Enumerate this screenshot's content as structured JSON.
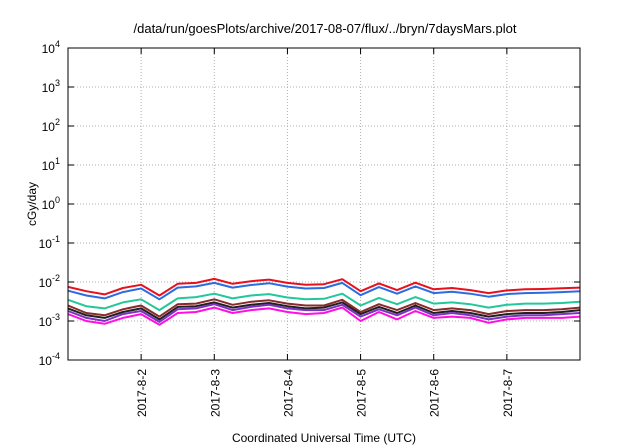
{
  "chart_data": {
    "type": "line",
    "title": "/data/run/goesPlots/archive/2017-08-07/flux/../bryn/7daysMars.plot",
    "xlabel": "Coordinated Universal Time (UTC)",
    "ylabel": "cGy/day",
    "y_scale": "log",
    "ylim": [
      0.0001,
      10000
    ],
    "xlim": [
      0,
      7
    ],
    "x_unit": "days since 2017-08-01 00:00 UTC",
    "grid": true,
    "legend": "none",
    "y_ticks": [
      {
        "value": 0.0001,
        "base": "10",
        "exp": "-4"
      },
      {
        "value": 0.001,
        "base": "10",
        "exp": "-3"
      },
      {
        "value": 0.01,
        "base": "10",
        "exp": "-2"
      },
      {
        "value": 0.1,
        "base": "10",
        "exp": "-1"
      },
      {
        "value": 1,
        "base": "10",
        "exp": "0"
      },
      {
        "value": 10,
        "base": "10",
        "exp": "1"
      },
      {
        "value": 100,
        "base": "10",
        "exp": "2"
      },
      {
        "value": 1000,
        "base": "10",
        "exp": "3"
      },
      {
        "value": 10000,
        "base": "10",
        "exp": "4"
      }
    ],
    "x_ticks": [
      {
        "value": 1,
        "label": "2017-8-2"
      },
      {
        "value": 2,
        "label": "2017-8-3"
      },
      {
        "value": 3,
        "label": "2017-8-4"
      },
      {
        "value": 4,
        "label": "2017-8-5"
      },
      {
        "value": 5,
        "label": "2017-8-6"
      },
      {
        "value": 6,
        "label": "2017-8-7"
      }
    ],
    "x": [
      0.0,
      0.25,
      0.5,
      0.75,
      1.0,
      1.25,
      1.5,
      1.75,
      2.0,
      2.25,
      2.5,
      2.75,
      3.0,
      3.25,
      3.5,
      3.75,
      4.0,
      4.25,
      4.5,
      4.75,
      5.0,
      5.25,
      5.5,
      5.75,
      6.0,
      6.25,
      6.5,
      6.75,
      7.0
    ],
    "series": [
      {
        "color": "#e8101c",
        "values": [
          0.0075,
          0.0058,
          0.0048,
          0.007,
          0.0085,
          0.0045,
          0.009,
          0.0095,
          0.012,
          0.009,
          0.0105,
          0.0115,
          0.0095,
          0.0085,
          0.0088,
          0.0118,
          0.0058,
          0.0092,
          0.0062,
          0.0096,
          0.0065,
          0.007,
          0.0062,
          0.0052,
          0.0061,
          0.0065,
          0.0066,
          0.0069,
          0.0072
        ]
      },
      {
        "color": "#2b6ce0",
        "values": [
          0.006,
          0.0045,
          0.0038,
          0.0055,
          0.0068,
          0.0036,
          0.0072,
          0.0077,
          0.0095,
          0.0072,
          0.0084,
          0.0093,
          0.0076,
          0.0068,
          0.007,
          0.0095,
          0.0046,
          0.0074,
          0.005,
          0.0077,
          0.0052,
          0.0056,
          0.005,
          0.0042,
          0.0049,
          0.0052,
          0.0053,
          0.0055,
          0.0058
        ]
      },
      {
        "color": "#22c79a",
        "values": [
          0.0035,
          0.0024,
          0.0021,
          0.003,
          0.0036,
          0.0019,
          0.0038,
          0.0041,
          0.005,
          0.0038,
          0.0045,
          0.0049,
          0.004,
          0.0036,
          0.0037,
          0.005,
          0.0025,
          0.0039,
          0.0027,
          0.0041,
          0.0028,
          0.003,
          0.0027,
          0.0022,
          0.0026,
          0.0028,
          0.0028,
          0.0029,
          0.0031
        ]
      },
      {
        "color": "#8a2a2a",
        "values": [
          0.0025,
          0.0016,
          0.0014,
          0.002,
          0.0025,
          0.0013,
          0.0027,
          0.0028,
          0.0036,
          0.0026,
          0.0031,
          0.0034,
          0.0028,
          0.0025,
          0.0025,
          0.0035,
          0.0017,
          0.0027,
          0.0019,
          0.0029,
          0.0019,
          0.0021,
          0.0019,
          0.0015,
          0.0018,
          0.0019,
          0.0019,
          0.002,
          0.0022
        ]
      },
      {
        "color": "#202020",
        "values": [
          0.0021,
          0.0014,
          0.0012,
          0.0017,
          0.0021,
          0.0011,
          0.0023,
          0.0024,
          0.003,
          0.0022,
          0.0026,
          0.0029,
          0.0024,
          0.0021,
          0.0022,
          0.003,
          0.0015,
          0.0023,
          0.0016,
          0.0025,
          0.0016,
          0.0018,
          0.0016,
          0.0013,
          0.0015,
          0.0016,
          0.0016,
          0.0017,
          0.0019
        ]
      },
      {
        "color": "#7b33c4",
        "values": [
          0.0018,
          0.0012,
          0.001,
          0.0015,
          0.0018,
          0.00095,
          0.002,
          0.0021,
          0.0027,
          0.0019,
          0.0023,
          0.0026,
          0.0021,
          0.0019,
          0.0019,
          0.0026,
          0.0013,
          0.002,
          0.0014,
          0.0022,
          0.0014,
          0.0016,
          0.0014,
          0.0011,
          0.0013,
          0.0014,
          0.0014,
          0.0015,
          0.0016
        ]
      },
      {
        "color": "#ff10e0",
        "values": [
          0.0015,
          0.001,
          0.00085,
          0.0012,
          0.0015,
          0.0008,
          0.0016,
          0.0017,
          0.0022,
          0.0016,
          0.0019,
          0.0021,
          0.0017,
          0.0015,
          0.0016,
          0.0022,
          0.001,
          0.0017,
          0.0011,
          0.0018,
          0.0012,
          0.0013,
          0.0012,
          0.0009,
          0.0011,
          0.0012,
          0.0012,
          0.0012,
          0.0013
        ]
      }
    ]
  }
}
